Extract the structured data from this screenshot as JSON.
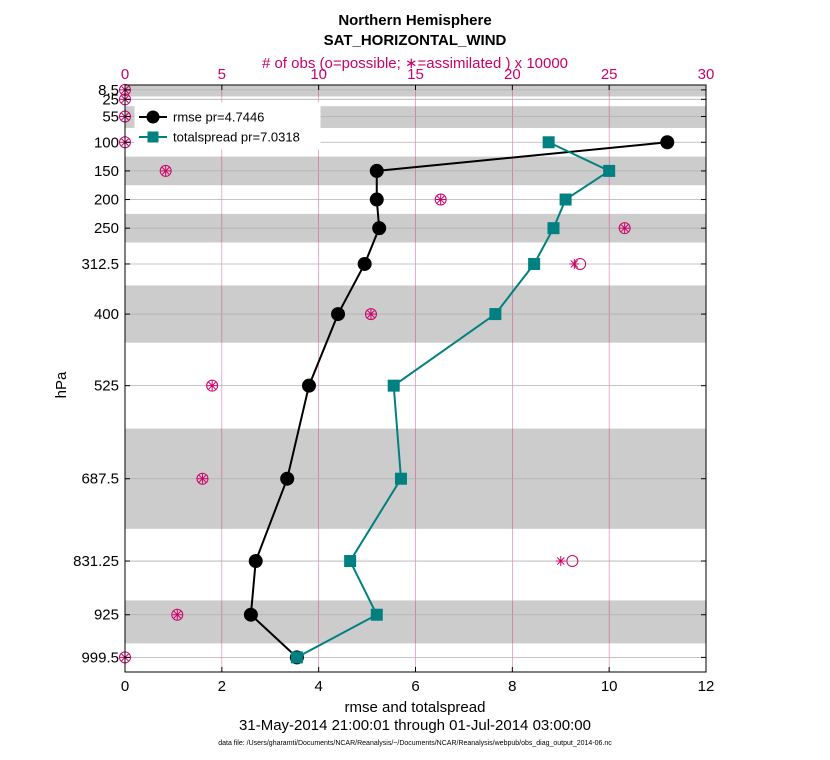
{
  "chart_data": {
    "type": "line",
    "title": "Northern Hemisphere",
    "subtitle": "SAT_HORIZONTAL_WIND",
    "top_axis_label": "# of obs (o=possible; ∗=assimilated ) x 10000",
    "xlabel": "rmse and totalspread",
    "ylabel": "hPa",
    "date_range": "31-May-2014 21:00:01 through 01-Jul-2014 03:00:00",
    "data_file": "data file: /Users/gharamti/Documents/NCAR/Reanalysis/~/Documents/NCAR/Reanalysis/webpub/obs_diag_output_2014-06.nc",
    "xlim": [
      0,
      12
    ],
    "x_ticks": [
      0,
      2,
      4,
      6,
      8,
      10,
      12
    ],
    "top_xlim": [
      0,
      30
    ],
    "top_ticks": [
      0,
      5,
      10,
      15,
      20,
      25,
      30
    ],
    "ylim": [
      0,
      1025
    ],
    "levels": [
      8.5,
      25,
      55,
      100,
      150,
      200,
      250,
      312.5,
      400,
      525,
      687.5,
      831.25,
      925,
      999.5
    ],
    "level_labels": [
      "8.5",
      "25",
      "55",
      "100",
      "150",
      "200",
      "250",
      "312.5",
      "400",
      "525",
      "687.5",
      "831.25",
      "925",
      "999.5"
    ],
    "shaded_bands": [
      [
        0,
        20
      ],
      [
        37,
        75
      ],
      [
        125,
        175
      ],
      [
        225,
        275
      ],
      [
        350,
        450
      ],
      [
        600,
        775
      ],
      [
        900,
        975
      ]
    ],
    "series": [
      {
        "name": "rmse",
        "legend": "rmse pr=4.7446",
        "color": "#000000",
        "marker": "circle",
        "values": [
          11.2,
          5.2,
          5.2,
          5.25,
          4.95,
          4.4,
          3.8,
          3.35,
          2.7,
          2.6,
          3.55
        ],
        "levels": [
          100,
          150,
          200,
          250,
          312.5,
          400,
          525,
          687.5,
          831.25,
          925,
          999.5
        ]
      },
      {
        "name": "totalspread",
        "legend": "totalspread pr=7.0318",
        "color": "#008080",
        "marker": "square",
        "values": [
          8.75,
          10.0,
          9.1,
          8.85,
          8.45,
          7.65,
          5.55,
          5.7,
          4.65,
          5.2,
          3.55
        ],
        "levels": [
          100,
          150,
          200,
          250,
          312.5,
          400,
          525,
          687.5,
          831.25,
          925,
          999.5
        ]
      }
    ],
    "obs_counts": {
      "color": "#cc0066",
      "possible": [
        0,
        0,
        0,
        0,
        2.1,
        16.3,
        25.8,
        23.5,
        12.7,
        4.5,
        4.0,
        23.1,
        2.7,
        0
      ],
      "assimilated": [
        0,
        0,
        0,
        0,
        2.1,
        16.3,
        25.8,
        23.2,
        12.7,
        4.5,
        4.0,
        22.5,
        2.7,
        0
      ]
    }
  }
}
